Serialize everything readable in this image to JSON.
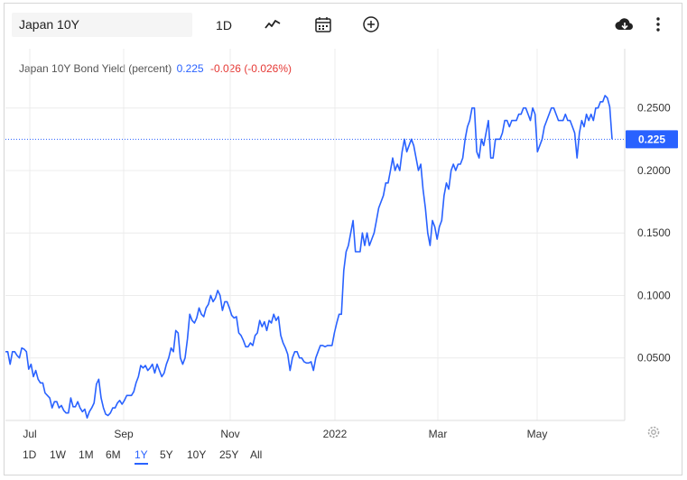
{
  "toolbar": {
    "symbol": "Japan 10Y",
    "interval": "1D",
    "icons": [
      "line-chart-icon",
      "calendar-icon",
      "add-circle-icon",
      "cloud-download-icon",
      "more-vertical-icon"
    ]
  },
  "legend": {
    "name": "Japan 10Y Bond Yield (percent)",
    "value": "0.225",
    "change": "-0.026 (-0.026%)"
  },
  "colors": {
    "line": "#2962ff",
    "negative": "#e53935",
    "grid": "#ececec"
  },
  "ranges": {
    "items": [
      "1D",
      "1W",
      "1M",
      "6M",
      "1Y",
      "5Y",
      "10Y",
      "25Y",
      "All"
    ],
    "active": "1Y"
  },
  "settings_icon": "gear-icon",
  "chart_data": {
    "type": "line",
    "series": [
      {
        "name": "Japan 10Y Bond Yield (percent)",
        "values": [
          0.055,
          0.055,
          0.045,
          0.055,
          0.055,
          0.052,
          0.05,
          0.058,
          0.057,
          0.055,
          0.041,
          0.045,
          0.035,
          0.04,
          0.033,
          0.03,
          0.03,
          0.022,
          0.02,
          0.018,
          0.01,
          0.015,
          0.015,
          0.01,
          0.012,
          0.008,
          0.006,
          0.006,
          0.018,
          0.011,
          0.011,
          0.015,
          0.01,
          0.007,
          0.009,
          0.002,
          0.007,
          0.01,
          0.014,
          0.029,
          0.033,
          0.018,
          0.01,
          0.005,
          0.004,
          0.006,
          0.01,
          0.01,
          0.014,
          0.016,
          0.013,
          0.016,
          0.02,
          0.02,
          0.02,
          0.023,
          0.03,
          0.035,
          0.044,
          0.042,
          0.044,
          0.04,
          0.042,
          0.045,
          0.038,
          0.045,
          0.04,
          0.035,
          0.038,
          0.045,
          0.05,
          0.058,
          0.055,
          0.072,
          0.07,
          0.05,
          0.045,
          0.05,
          0.065,
          0.085,
          0.08,
          0.078,
          0.082,
          0.09,
          0.085,
          0.083,
          0.09,
          0.093,
          0.1,
          0.095,
          0.098,
          0.104,
          0.1,
          0.088,
          0.095,
          0.095,
          0.09,
          0.084,
          0.082,
          0.083,
          0.07,
          0.068,
          0.064,
          0.059,
          0.059,
          0.062,
          0.06,
          0.068,
          0.07,
          0.08,
          0.075,
          0.079,
          0.072,
          0.08,
          0.078,
          0.085,
          0.08,
          0.083,
          0.068,
          0.062,
          0.058,
          0.053,
          0.04,
          0.05,
          0.055,
          0.055,
          0.05,
          0.05,
          0.047,
          0.046,
          0.046,
          0.047,
          0.04,
          0.05,
          0.055,
          0.06,
          0.06,
          0.059,
          0.06,
          0.06,
          0.06,
          0.07,
          0.078,
          0.085,
          0.085,
          0.12,
          0.135,
          0.14,
          0.15,
          0.16,
          0.135,
          0.135,
          0.135,
          0.15,
          0.14,
          0.15,
          0.14,
          0.145,
          0.15,
          0.16,
          0.17,
          0.175,
          0.18,
          0.19,
          0.19,
          0.2,
          0.21,
          0.2,
          0.205,
          0.2,
          0.215,
          0.225,
          0.215,
          0.22,
          0.225,
          0.22,
          0.21,
          0.2,
          0.205,
          0.185,
          0.17,
          0.15,
          0.14,
          0.16,
          0.155,
          0.145,
          0.155,
          0.16,
          0.18,
          0.19,
          0.185,
          0.2,
          0.205,
          0.2,
          0.205,
          0.205,
          0.21,
          0.225,
          0.235,
          0.24,
          0.25,
          0.25,
          0.215,
          0.21,
          0.225,
          0.22,
          0.23,
          0.24,
          0.21,
          0.21,
          0.225,
          0.225,
          0.225,
          0.23,
          0.24,
          0.24,
          0.235,
          0.24,
          0.24,
          0.24,
          0.245,
          0.245,
          0.25,
          0.25,
          0.245,
          0.24,
          0.25,
          0.245,
          0.215,
          0.22,
          0.225,
          0.235,
          0.24,
          0.245,
          0.25,
          0.25,
          0.245,
          0.24,
          0.24,
          0.24,
          0.245,
          0.24,
          0.24,
          0.235,
          0.23,
          0.21,
          0.23,
          0.24,
          0.235,
          0.245,
          0.24,
          0.245,
          0.24,
          0.25,
          0.25,
          0.255,
          0.255,
          0.26,
          0.258,
          0.251,
          0.225
        ]
      }
    ],
    "x_ticks": [
      "Jul",
      "Sep",
      "Nov",
      "2022",
      "Mar",
      "May"
    ],
    "y_ticks": [
      "0.0500",
      "0.1000",
      "0.1500",
      "0.2000",
      "0.2500"
    ],
    "last_value_label": "0.225",
    "ylim": [
      0.0,
      0.27
    ],
    "grid": true,
    "axis_position": "right"
  }
}
